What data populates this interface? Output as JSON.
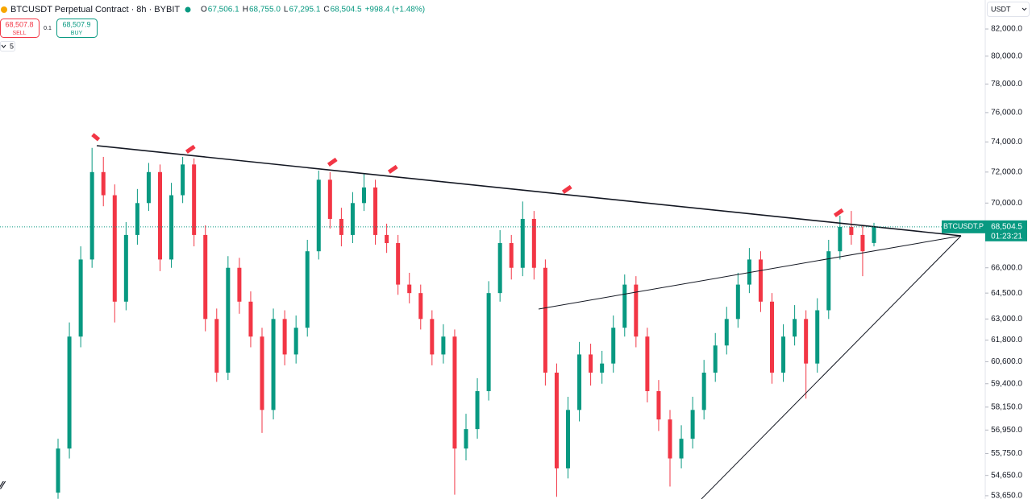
{
  "chart_data": {
    "type": "candlestick",
    "title": "BTCUSDT Perpetual Contract · 8h · BYBIT",
    "ohlc_legend": {
      "labels": [
        "O",
        "H",
        "L",
        "C"
      ],
      "values": [
        67506.1,
        68755.0,
        67295.1,
        68504.5
      ],
      "value_labels": [
        "67,506.1",
        "68,755.0",
        "67,295.1",
        "68,504.5"
      ],
      "change": "+998.4 (+1.48%)"
    },
    "trade_panel": {
      "sell_price": "68,507.8",
      "sell": "SELL",
      "quantity": "0.1",
      "buy_price": "68,507.9",
      "buy": "BUY",
      "indicator_count": "5"
    },
    "currency": "USDT",
    "price_tag": {
      "symbol": "BTCUSDT.P",
      "price": "68,504.5",
      "countdown": "01:23:21"
    },
    "up_color": "#089981",
    "down_color": "#f23645",
    "log_scale": true,
    "ylim": [
      53490,
      84190
    ],
    "yticks": [
      {
        "value": 82000,
        "label": "82,000.0"
      },
      {
        "value": 80000,
        "label": "80,000.0"
      },
      {
        "value": 78000,
        "label": "78,000.0"
      },
      {
        "value": 76000,
        "label": "76,000.0"
      },
      {
        "value": 74000,
        "label": "74,000.0"
      },
      {
        "value": 72000,
        "label": "72,000.0"
      },
      {
        "value": 70000,
        "label": "70,000.0"
      },
      {
        "value": 66000,
        "label": "66,000.0"
      },
      {
        "value": 64500,
        "label": "64,500.0"
      },
      {
        "value": 63000,
        "label": "63,000.0"
      },
      {
        "value": 61800,
        "label": "61,800.0"
      },
      {
        "value": 60600,
        "label": "60,600.0"
      },
      {
        "value": 59400,
        "label": "59,400.0"
      },
      {
        "value": 58150,
        "label": "58,150.0"
      },
      {
        "value": 56950,
        "label": "56,950.0"
      },
      {
        "value": 55750,
        "label": "55,750.0"
      },
      {
        "value": 54650,
        "label": "54,650.0"
      },
      {
        "value": 53650,
        "label": "53,650.0"
      }
    ],
    "open": [
      53800,
      56000,
      62000,
      66500,
      72000,
      70500,
      64000,
      68000,
      70000,
      72000,
      66500,
      70500,
      72500,
      68000,
      63000,
      60000,
      66000,
      64000,
      62000,
      58000,
      63000,
      61000,
      62500,
      67000,
      71500,
      69000,
      68000,
      70000,
      71000,
      68000,
      67500,
      65000,
      64500,
      63000,
      61000,
      62000,
      56000,
      57000,
      59000,
      64500,
      67500,
      66000,
      69000,
      66000,
      60000,
      55000,
      58000,
      61000,
      60000,
      60500,
      62500,
      65000,
      62000,
      59000,
      57500,
      55500,
      56500,
      58000,
      60000,
      61500,
      63000,
      65000,
      66500,
      64000,
      60000,
      62000,
      63000,
      60500,
      63500,
      67000,
      68500,
      68000,
      67506.1
    ],
    "high": [
      56500,
      62800,
      67300,
      73600,
      73000,
      71200,
      68800,
      70900,
      72600,
      72500,
      71300,
      73000,
      72900,
      68600,
      63600,
      66700,
      66600,
      64600,
      62500,
      63600,
      63500,
      63200,
      67700,
      72100,
      72000,
      69700,
      70700,
      71900,
      71500,
      68700,
      68000,
      65700,
      65000,
      63500,
      62700,
      62400,
      57800,
      59700,
      65200,
      68300,
      68000,
      70100,
      69500,
      66500,
      60500,
      58700,
      61700,
      61600,
      61200,
      63200,
      65600,
      65500,
      62500,
      59600,
      58000,
      57200,
      58700,
      60700,
      62200,
      63700,
      65700,
      67200,
      67000,
      64500,
      62700,
      63800,
      63500,
      64200,
      67700,
      69200,
      69500,
      68600,
      68755.0
    ],
    "low": [
      53500,
      55500,
      61400,
      66000,
      69800,
      62800,
      63500,
      67400,
      69500,
      65800,
      66000,
      70000,
      67300,
      62300,
      59500,
      59600,
      63300,
      61400,
      56800,
      57500,
      60400,
      60500,
      62000,
      66500,
      68400,
      67300,
      67500,
      69500,
      67400,
      66900,
      64400,
      63900,
      62400,
      60400,
      60500,
      53700,
      55400,
      56500,
      58500,
      64000,
      65300,
      65500,
      65300,
      59300,
      53600,
      54500,
      57400,
      59300,
      59400,
      60000,
      62000,
      61400,
      58400,
      56900,
      54100,
      55000,
      56000,
      57500,
      59500,
      61000,
      62500,
      64500,
      63400,
      59400,
      59500,
      61500,
      58600,
      60000,
      63000,
      66500,
      67400,
      65500,
      67295.1
    ],
    "close": [
      56000,
      62000,
      66500,
      72000,
      70500,
      64000,
      68000,
      70000,
      72000,
      66500,
      70500,
      72500,
      68000,
      63000,
      60000,
      66000,
      64000,
      62000,
      58000,
      63000,
      61000,
      62500,
      67000,
      71500,
      69000,
      68000,
      70000,
      71000,
      68000,
      67500,
      65000,
      64500,
      63000,
      61000,
      62000,
      56000,
      57000,
      59000,
      64500,
      67500,
      66000,
      69000,
      66000,
      60000,
      55000,
      58000,
      61000,
      60000,
      60500,
      62500,
      65000,
      62000,
      59000,
      57500,
      55500,
      56500,
      58000,
      60000,
      61500,
      63000,
      65000,
      66500,
      64000,
      60000,
      62000,
      63000,
      60500,
      63500,
      67000,
      68500,
      68000,
      67000,
      68504.5
    ]
  }
}
